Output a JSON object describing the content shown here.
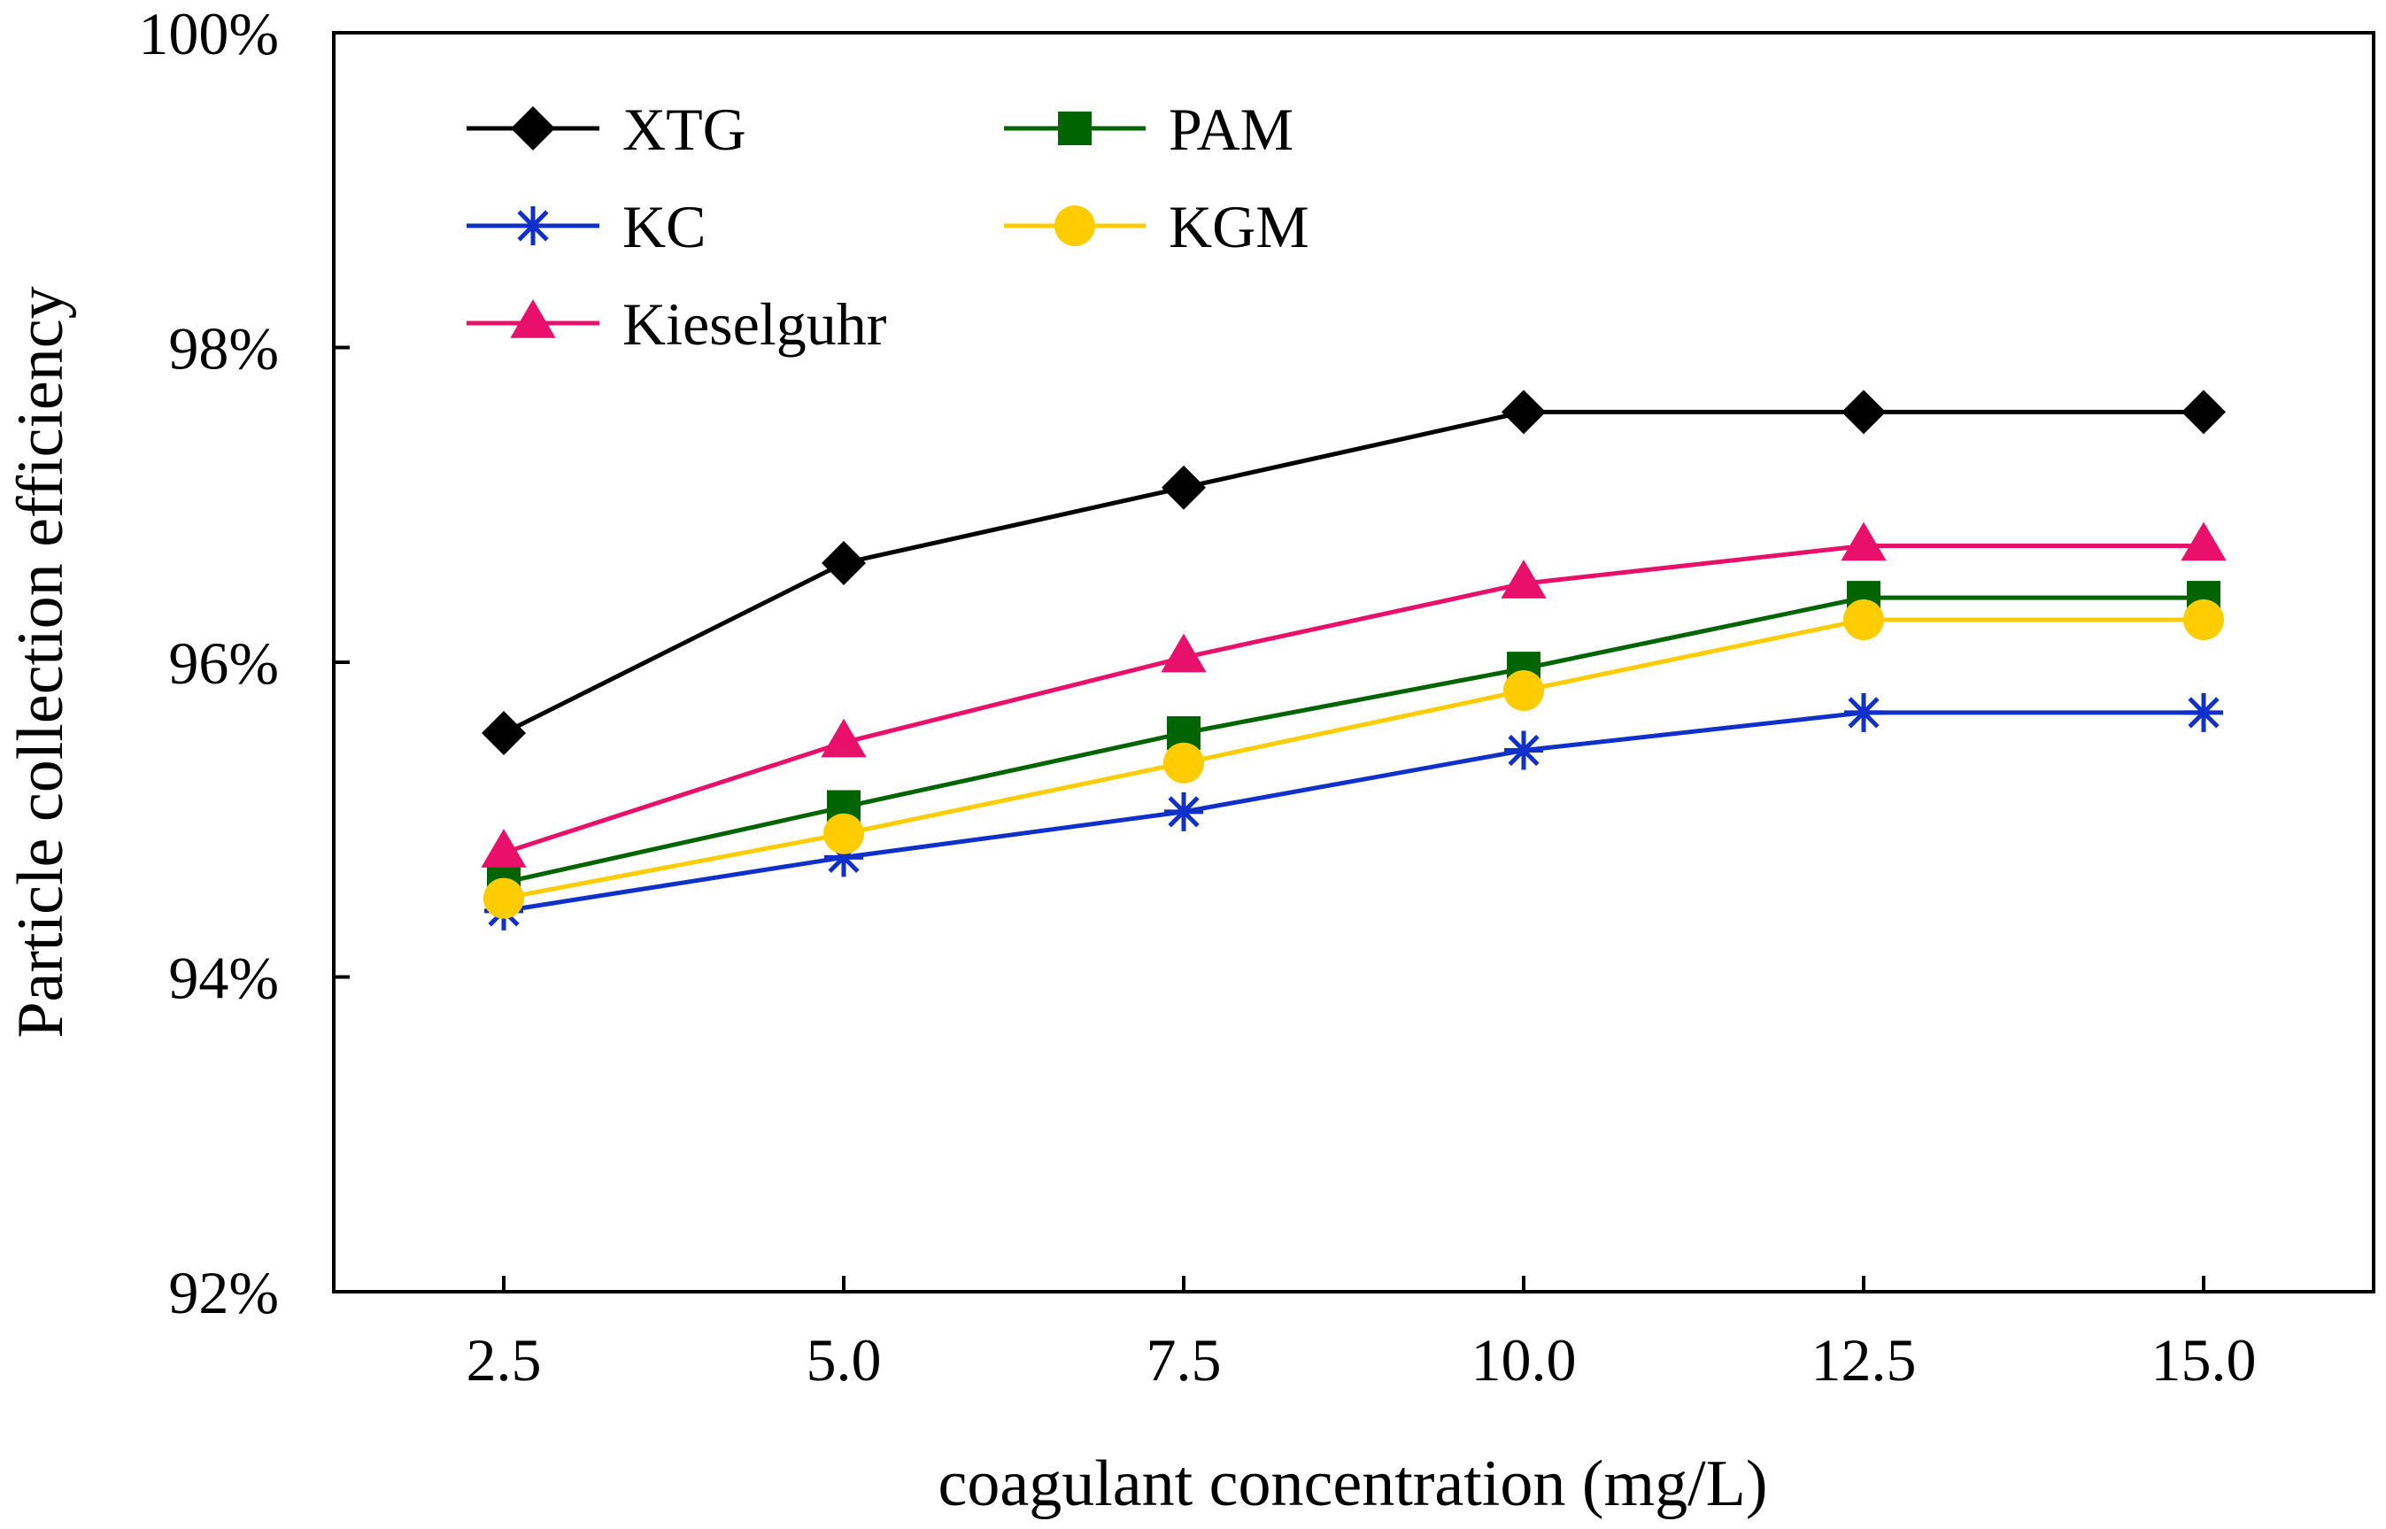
{
  "chart_data": {
    "type": "line",
    "title": "",
    "xlabel": "coagulant concentration (mg/L)",
    "ylabel": "Particle collection efficiency",
    "x": [
      2.5,
      5.0,
      7.5,
      10.0,
      12.5,
      15.0
    ],
    "x_tick_labels": [
      "2.5",
      "5.0",
      "7.5",
      "10.0",
      "12.5",
      "15.0"
    ],
    "xlim": [
      1.25,
      16.25
    ],
    "ylim": [
      92,
      100
    ],
    "y_ticks": [
      92,
      94,
      96,
      98,
      100
    ],
    "y_tick_labels": [
      "92%",
      "94%",
      "96%",
      "98%",
      "100%"
    ],
    "grid": false,
    "legend_position": "top-left",
    "series": [
      {
        "name": "XTG",
        "color": "#000000",
        "marker": "diamond",
        "values": [
          95.55,
          96.63,
          97.11,
          97.59,
          97.59,
          97.59
        ]
      },
      {
        "name": "PAM",
        "color": "#006400",
        "marker": "square",
        "values": [
          94.6,
          95.08,
          95.55,
          95.96,
          96.41,
          96.41
        ]
      },
      {
        "name": "KC",
        "color": "#1030CC",
        "marker": "asterisk",
        "values": [
          94.42,
          94.76,
          95.05,
          95.44,
          95.68,
          95.68
        ]
      },
      {
        "name": "KGM",
        "color": "#FFCC00",
        "marker": "circle",
        "values": [
          94.5,
          94.91,
          95.36,
          95.82,
          96.27,
          96.27
        ]
      },
      {
        "name": "Kieselguhr",
        "color": "#E8106A",
        "marker": "triangle",
        "values": [
          94.79,
          95.49,
          96.03,
          96.5,
          96.74,
          96.74
        ]
      }
    ]
  }
}
